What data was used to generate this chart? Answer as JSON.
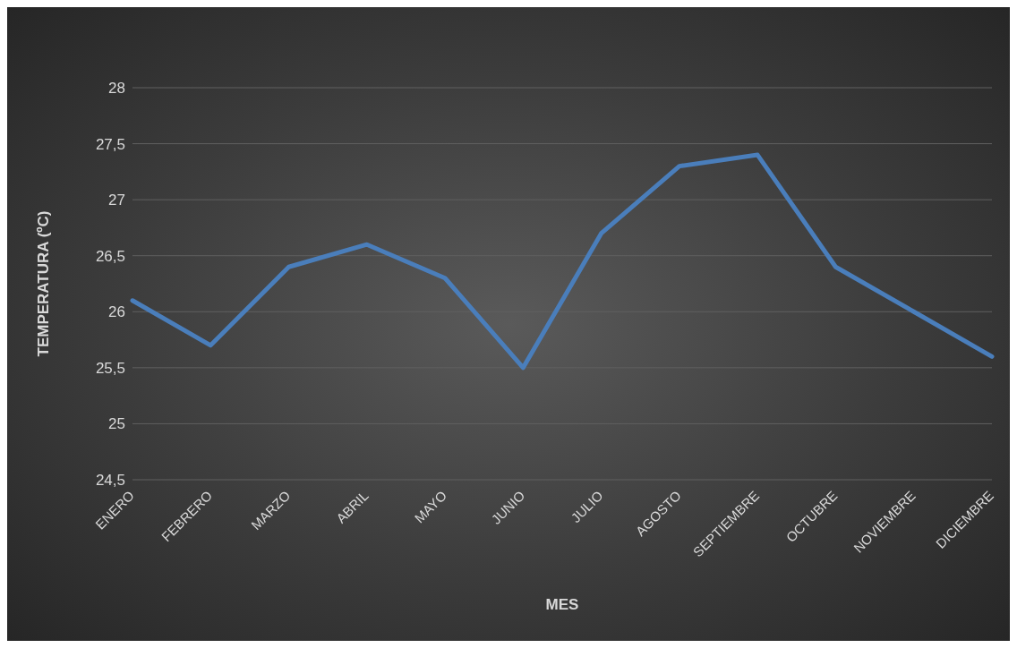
{
  "chart_data": {
    "type": "line",
    "xlabel": "MES",
    "ylabel": "TEMPERATURA (ºC)",
    "categories": [
      "ENERO",
      "FEBRERO",
      "MARZO",
      "ABRIL",
      "MAYO",
      "JUNIO",
      "JULIO",
      "AGOSTO",
      "SEPTIEMBRE",
      "OCTUBRE",
      "NOVIEMBRE",
      "DICIEMBRE"
    ],
    "series": [
      {
        "color": "#4a7ebb",
        "values": [
          26.1,
          25.7,
          26.4,
          26.6,
          26.3,
          25.5,
          26.7,
          27.3,
          27.4,
          26.4,
          26.0,
          25.6
        ]
      }
    ],
    "ylim": [
      24.5,
      28
    ],
    "yticks": [
      {
        "value": 24.5,
        "label": "24,5"
      },
      25,
      {
        "value": 25.5,
        "label": "25,5"
      },
      26,
      {
        "value": 26.5,
        "label": "26,5"
      },
      27,
      {
        "value": 27.5,
        "label": "27,5"
      },
      28
    ],
    "grid": "y",
    "legend": false,
    "marker": "none",
    "line_style": "solid"
  }
}
